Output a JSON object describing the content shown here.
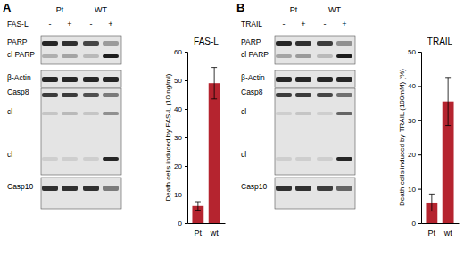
{
  "chart_data": [
    {
      "type": "bar",
      "title": "FAS-L",
      "y_label": "Death cells induced by FAS-L (10 ng/ml)",
      "categories": [
        "Pt",
        "wt"
      ],
      "values": [
        6,
        49
      ],
      "errors": [
        1.5,
        5.5
      ],
      "color": "#b5242f",
      "ylim": [
        0,
        60
      ],
      "yticks": [
        0,
        10,
        20,
        30,
        40,
        50,
        60
      ],
      "grid": false
    },
    {
      "type": "bar",
      "title": "TRAIL",
      "y_label": "Death cells induced by TRAIL (100mM) (%)",
      "categories": [
        "Pt",
        "wt"
      ],
      "values": [
        6,
        35.5
      ],
      "errors": [
        2.5,
        7
      ],
      "color": "#b5242f",
      "ylim": [
        0,
        50
      ],
      "yticks": [
        0,
        10,
        20,
        30,
        40,
        50
      ],
      "grid": false
    }
  ],
  "blots": [
    {
      "panel": "A",
      "groups": [
        "Pt",
        "WT"
      ],
      "treatment": "FAS-L",
      "signs": [
        "-",
        "+",
        "-",
        "+"
      ],
      "bands": [
        "PARP",
        "cl PARP",
        "β-Actin",
        "Casp8",
        "cl",
        "cl",
        "Casp10"
      ]
    },
    {
      "panel": "B",
      "groups": [
        "Pt",
        "WT"
      ],
      "treatment": "TRAIL",
      "signs": [
        "-",
        "+",
        "-",
        "+"
      ],
      "bands": [
        "PARP",
        "cl PARP",
        "β-Actin",
        "Casp8",
        "cl",
        "cl",
        "Casp10"
      ]
    }
  ]
}
